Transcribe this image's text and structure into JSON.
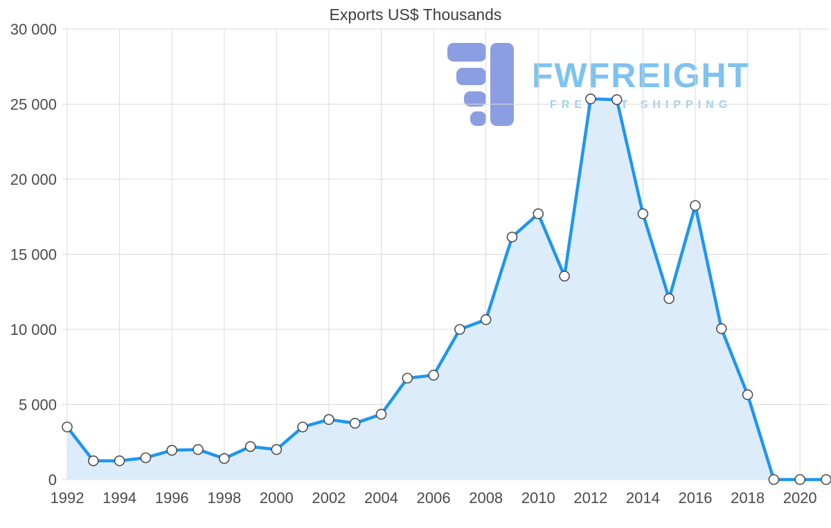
{
  "watermark": {
    "brand": "FWFREIGHT",
    "tagline": "FREIGHT SHIPPING",
    "icon": "fwfreight-logo-icon"
  },
  "colors": {
    "line": "#1e96f0",
    "fill": "#ddecfa",
    "marker_fill": "#ffffff",
    "marker_stroke": "#4d4d4d",
    "grid": "#d9d9d9",
    "tick_text": "#4a4a4a",
    "title_text": "#3d3d3d",
    "logo_icon": "#8c9ee2",
    "brand_text": "#7ec3f0",
    "tagline_text": "#9ccdf0"
  },
  "chart_data": {
    "type": "area",
    "title": "Exports US$ Thousands",
    "x": [
      1992,
      1993,
      1994,
      1995,
      1996,
      1997,
      1998,
      1999,
      2000,
      2001,
      2002,
      2003,
      2004,
      2005,
      2006,
      2007,
      2008,
      2009,
      2010,
      2011,
      2012,
      2013,
      2014,
      2015,
      2016,
      2017,
      2018,
      2019,
      2020,
      2021
    ],
    "values": [
      3500,
      1250,
      1250,
      1450,
      1950,
      2000,
      1400,
      2200,
      2000,
      3500,
      4000,
      3750,
      4350,
      6750,
      6950,
      10000,
      10650,
      16150,
      17700,
      13550,
      25350,
      25300,
      17700,
      12050,
      18250,
      10050,
      5650,
      0,
      0,
      0
    ],
    "xticks": [
      1992,
      1994,
      1996,
      1998,
      2000,
      2002,
      2004,
      2006,
      2008,
      2010,
      2012,
      2014,
      2016,
      2018,
      2020
    ],
    "ylim": [
      0,
      30000
    ],
    "ytick_step": 5000,
    "xlabel": "",
    "ylabel": "",
    "grid": true,
    "legend": "none",
    "number_format": "space-thousands",
    "marker": "circle-white"
  }
}
